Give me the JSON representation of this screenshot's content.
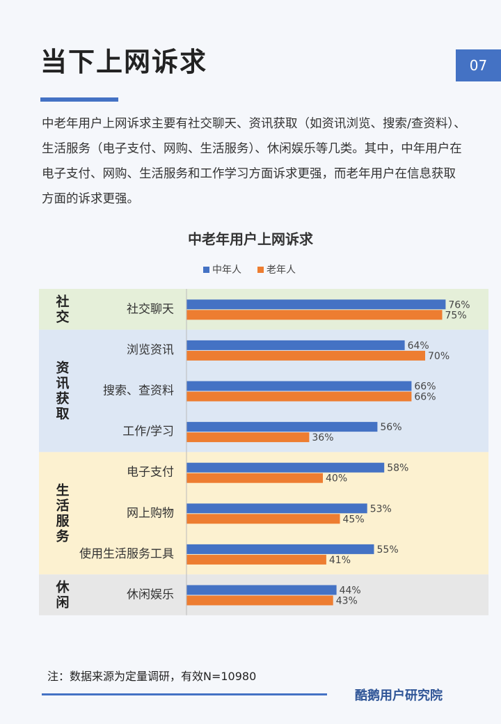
{
  "header": {
    "title": "当下上网诉求",
    "page_number": "07"
  },
  "paragraph": "中老年用户上网诉求主要有社交聊天、资讯获取（如资讯浏览、搜索/查资料）、生活服务（电子支付、网购、生活服务）、休闲娱乐等几类。其中，中年用户在电子支付、网购、生活服务和工作学习方面诉求更强，而老年用户在信息获取方面的诉求更强。",
  "chart_data": {
    "type": "grouped-hbar",
    "title": "中老年用户上网诉求",
    "groups": [
      {
        "label": "社交",
        "color": "#e5efd9",
        "categories": [
          "社交聊天"
        ]
      },
      {
        "label": "资讯获取",
        "color": "#dde7f4",
        "categories": [
          "浏览资讯",
          "搜索、查资料",
          "工作/学习"
        ]
      },
      {
        "label": "生活服务",
        "color": "#fcf1d0",
        "categories": [
          "电子支付",
          "网上购物",
          "使用生活服务工具"
        ]
      },
      {
        "label": "休闲",
        "color": "#e7e7e7",
        "categories": [
          "休闲娱乐"
        ]
      }
    ],
    "series": [
      {
        "name": "中年人",
        "color": "#4472c4",
        "values": [
          76,
          64,
          66,
          56,
          58,
          53,
          55,
          44
        ],
        "value_labels": [
          "76%",
          "64%",
          "66%",
          "56%",
          "58%",
          "53%",
          "55%",
          "44%"
        ]
      },
      {
        "name": "老年人",
        "color": "#ed7d31",
        "values": [
          75,
          70,
          66,
          36,
          40,
          45,
          41,
          43
        ],
        "value_labels": [
          "75%",
          "70%",
          "66%",
          "36%",
          "40%",
          "45%",
          "41%",
          "43%"
        ]
      }
    ]
  },
  "note": "注：数据来源为定量调研，有效N=10980",
  "footer": {
    "brand": "酷鹅用户研究院"
  }
}
